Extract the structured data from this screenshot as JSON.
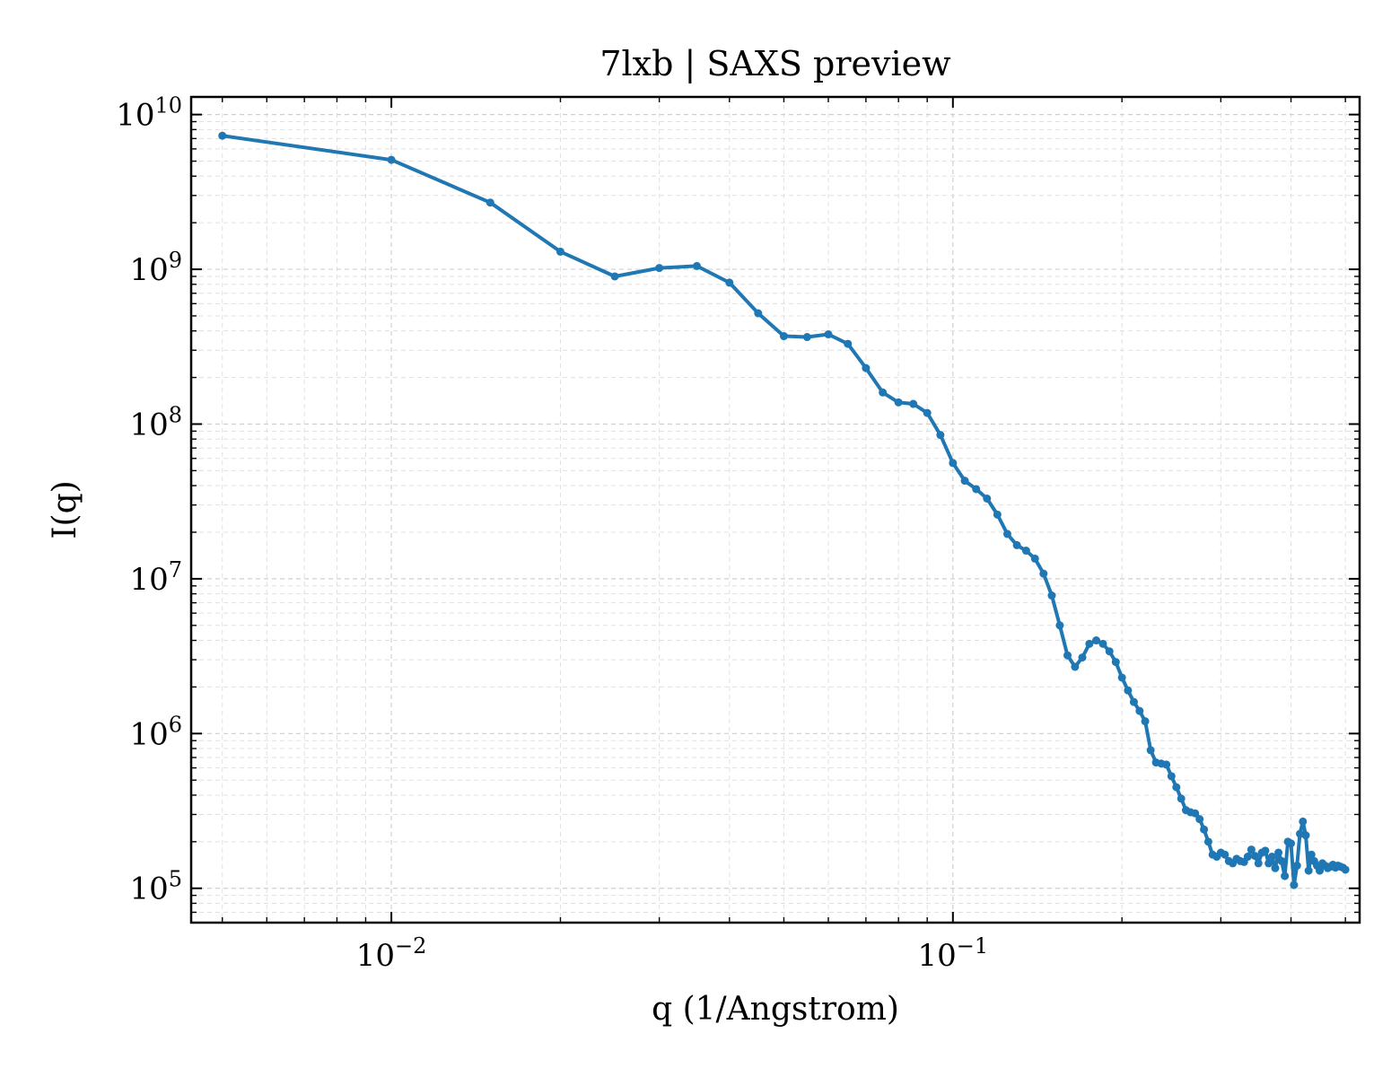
{
  "chart_data": {
    "type": "line",
    "title": "7lxb | SAXS preview",
    "xlabel": "q (1/Angstrom)",
    "ylabel": "I(q)",
    "xscale": "log",
    "yscale": "log",
    "xlim": [
      0.0044,
      0.53
    ],
    "ylim": [
      60000,
      13000000000
    ],
    "x_ticks": [
      {
        "value": 0.01,
        "base": "10",
        "exp": "−2"
      },
      {
        "value": 0.1,
        "base": "10",
        "exp": "−1"
      }
    ],
    "y_ticks": [
      {
        "value": 100000,
        "base": "10",
        "exp": "5"
      },
      {
        "value": 1000000,
        "base": "10",
        "exp": "6"
      },
      {
        "value": 10000000,
        "base": "10",
        "exp": "7"
      },
      {
        "value": 100000000,
        "base": "10",
        "exp": "8"
      },
      {
        "value": 1000000000,
        "base": "10",
        "exp": "9"
      },
      {
        "value": 10000000000,
        "base": "10",
        "exp": "10"
      }
    ],
    "grid": true,
    "line_color": "#1f77b4",
    "series": [
      {
        "x": [
          0.005,
          0.01,
          0.015,
          0.02,
          0.025,
          0.03,
          0.035,
          0.04,
          0.045,
          0.05,
          0.055,
          0.06,
          0.065,
          0.07,
          0.075,
          0.08,
          0.085,
          0.09,
          0.095,
          0.1,
          0.105,
          0.11,
          0.115,
          0.12,
          0.125,
          0.13,
          0.135,
          0.14,
          0.145,
          0.15,
          0.155,
          0.16,
          0.165,
          0.17,
          0.175,
          0.18,
          0.185,
          0.19,
          0.195,
          0.2,
          0.205,
          0.21,
          0.215,
          0.22,
          0.225,
          0.23,
          0.235,
          0.24,
          0.245,
          0.25,
          0.255,
          0.26,
          0.265,
          0.27,
          0.275,
          0.28,
          0.285,
          0.29,
          0.295,
          0.3,
          0.305,
          0.31,
          0.315,
          0.32,
          0.325,
          0.33,
          0.335,
          0.34,
          0.345,
          0.35,
          0.355,
          0.36,
          0.365,
          0.37,
          0.375,
          0.38,
          0.385,
          0.39,
          0.395,
          0.4,
          0.405,
          0.41,
          0.415,
          0.42,
          0.425,
          0.43,
          0.435,
          0.44,
          0.445,
          0.45,
          0.455,
          0.46,
          0.465,
          0.47,
          0.475,
          0.48,
          0.485,
          0.49,
          0.495,
          0.5
        ],
        "y": [
          7300000000,
          5100000000,
          2700000000,
          1300000000,
          900000000,
          1020000000,
          1050000000,
          820000000,
          520000000,
          370000000,
          365000000,
          380000000,
          330000000,
          230000000,
          160000000,
          138000000,
          135000000,
          118000000,
          85000000,
          56000000,
          43000000,
          38000000,
          33000000,
          26000000,
          19500000,
          16500000,
          15200000,
          13500000,
          10800000,
          7800000,
          5000000,
          3200000,
          2700000,
          3100000,
          3800000,
          4000000,
          3800000,
          3400000,
          2900000,
          2300000,
          1900000,
          1600000,
          1400000,
          1200000,
          780000,
          650000,
          640000,
          630000,
          530000,
          450000,
          380000,
          320000,
          310000,
          305000,
          280000,
          240000,
          200000,
          165000,
          160000,
          170000,
          165000,
          150000,
          145000,
          155000,
          150000,
          148000,
          160000,
          178000,
          162000,
          145000,
          170000,
          175000,
          145000,
          160000,
          135000,
          170000,
          150000,
          120000,
          200000,
          195000,
          105000,
          140000,
          225000,
          270000,
          220000,
          130000,
          165000,
          150000,
          140000,
          130000,
          145000,
          140000,
          135000,
          138000,
          142000,
          136000,
          140000,
          138000,
          136000,
          132000
        ]
      }
    ]
  }
}
